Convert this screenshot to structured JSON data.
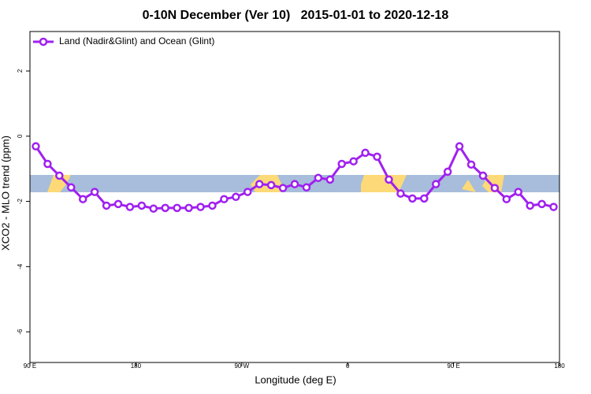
{
  "chart_data": {
    "type": "line",
    "title": "0-10N December (Ver 10)   2015-01-01 to 2020-12-18",
    "xlabel": "Longitude (deg E)",
    "ylabel": "XCO2 - MLO trend (ppm)",
    "x": [
      95,
      105,
      115,
      125,
      135,
      145,
      155,
      165,
      175,
      185,
      195,
      205,
      215,
      225,
      235,
      245,
      255,
      265,
      275,
      285,
      295,
      305,
      315,
      325,
      335,
      345,
      355,
      365,
      375,
      385,
      395,
      405,
      415,
      425,
      435,
      445,
      455,
      465,
      475,
      485,
      495,
      505,
      515,
      525,
      535
    ],
    "series": [
      {
        "name": "Land (Nadir&Glint) and Ocean (Glint)",
        "color": "#a020f0",
        "values": [
          -0.31,
          -0.85,
          -1.21,
          -1.57,
          -1.93,
          -1.71,
          -2.13,
          -2.08,
          -2.17,
          -2.13,
          -2.22,
          -2.2,
          -2.2,
          -2.2,
          -2.17,
          -2.13,
          -1.93,
          -1.86,
          -1.71,
          -1.47,
          -1.5,
          -1.59,
          -1.47,
          -1.57,
          -1.28,
          -1.33,
          -0.85,
          -0.77,
          -0.51,
          -0.63,
          -1.33,
          -1.76,
          -1.91,
          -1.91,
          -1.47,
          -1.09,
          -0.31,
          -0.87,
          -1.21,
          -1.59,
          -1.93,
          -1.71,
          -2.13,
          -2.08,
          -2.17
        ]
      }
    ],
    "xlim": [
      90,
      540
    ],
    "xticks": [
      {
        "value": 90,
        "label": "90 E"
      },
      180,
      {
        "value": 270,
        "label": "90 W"
      },
      {
        "value": 360,
        "label": "0"
      },
      {
        "value": 450,
        "label": "90 E"
      },
      {
        "value": 540,
        "label": "180"
      }
    ],
    "ylim": [
      -6.94,
      3.21
    ],
    "yticks": [
      2,
      0,
      -2,
      -4,
      -6
    ],
    "legend": "top-left"
  }
}
